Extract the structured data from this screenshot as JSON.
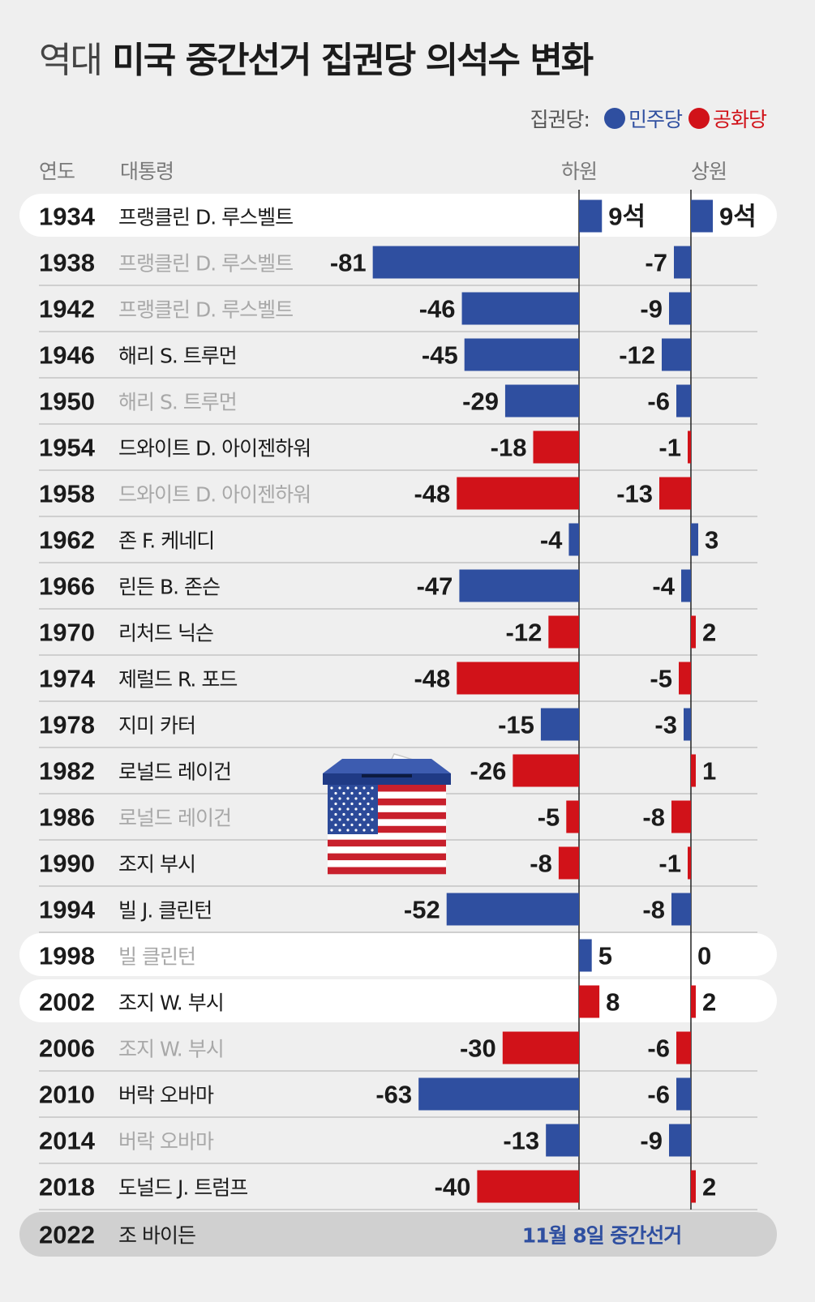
{
  "title": {
    "prefix": "역대",
    "main": "미국 중간선거 집권당 의석수 변화"
  },
  "legend": {
    "label": "집권당:",
    "items": [
      {
        "name": "민주당",
        "color": "#2f4fa0"
      },
      {
        "name": "공화당",
        "color": "#d11219"
      }
    ]
  },
  "headers": {
    "year": "연도",
    "president": "대통령",
    "house": "하원",
    "senate": "상원"
  },
  "chart_data": {
    "type": "bar",
    "series": [
      {
        "name": "하원",
        "values": [
          9,
          -81,
          -46,
          -45,
          -29,
          -18,
          -48,
          -4,
          -47,
          -12,
          -48,
          -15,
          -26,
          -5,
          -8,
          -52,
          5,
          8,
          -30,
          -63,
          -13,
          -40
        ]
      },
      {
        "name": "상원",
        "values": [
          9,
          -7,
          -9,
          -12,
          -6,
          -1,
          -13,
          3,
          -4,
          2,
          -5,
          -3,
          1,
          -8,
          -1,
          -8,
          0,
          2,
          -6,
          -6,
          -9,
          2
        ]
      }
    ],
    "rows": [
      {
        "year": "1934",
        "president": "프랭클린 D. 루스벨트",
        "party": "dem",
        "muted": false,
        "highlight": true,
        "house_label": "9석",
        "senate_label": "9석"
      },
      {
        "year": "1938",
        "president": "프랭클린 D. 루스벨트",
        "party": "dem",
        "muted": true,
        "highlight": false,
        "house_label": "-81",
        "senate_label": "-7"
      },
      {
        "year": "1942",
        "president": "프랭클린 D. 루스벨트",
        "party": "dem",
        "muted": true,
        "highlight": false,
        "house_label": "-46",
        "senate_label": "-9"
      },
      {
        "year": "1946",
        "president": "해리 S. 트루먼",
        "party": "dem",
        "muted": false,
        "highlight": false,
        "house_label": "-45",
        "senate_label": "-12"
      },
      {
        "year": "1950",
        "president": "해리 S. 트루먼",
        "party": "dem",
        "muted": true,
        "highlight": false,
        "house_label": "-29",
        "senate_label": "-6"
      },
      {
        "year": "1954",
        "president": "드와이트 D. 아이젠하워",
        "party": "rep",
        "muted": false,
        "highlight": false,
        "house_label": "-18",
        "senate_label": "-1"
      },
      {
        "year": "1958",
        "president": "드와이트 D. 아이젠하워",
        "party": "rep",
        "muted": true,
        "highlight": false,
        "house_label": "-48",
        "senate_label": "-13"
      },
      {
        "year": "1962",
        "president": "존 F. 케네디",
        "party": "dem",
        "muted": false,
        "highlight": false,
        "house_label": "-4",
        "senate_label": "3"
      },
      {
        "year": "1966",
        "president": "린든 B. 존슨",
        "party": "dem",
        "muted": false,
        "highlight": false,
        "house_label": "-47",
        "senate_label": "-4"
      },
      {
        "year": "1970",
        "president": "리처드 닉슨",
        "party": "rep",
        "muted": false,
        "highlight": false,
        "house_label": "-12",
        "senate_label": "2"
      },
      {
        "year": "1974",
        "president": "제럴드 R. 포드",
        "party": "rep",
        "muted": false,
        "highlight": false,
        "house_label": "-48",
        "senate_label": "-5"
      },
      {
        "year": "1978",
        "president": "지미 카터",
        "party": "dem",
        "muted": false,
        "highlight": false,
        "house_label": "-15",
        "senate_label": "-3"
      },
      {
        "year": "1982",
        "president": "로널드 레이건",
        "party": "rep",
        "muted": false,
        "highlight": false,
        "house_label": "-26",
        "senate_label": "1"
      },
      {
        "year": "1986",
        "president": "로널드 레이건",
        "party": "rep",
        "muted": true,
        "highlight": false,
        "house_label": "-5",
        "senate_label": "-8"
      },
      {
        "year": "1990",
        "president": "조지 부시",
        "party": "rep",
        "muted": false,
        "highlight": false,
        "house_label": "-8",
        "senate_label": "-1"
      },
      {
        "year": "1994",
        "president": "빌 J. 클린턴",
        "party": "dem",
        "muted": false,
        "highlight": false,
        "house_label": "-52",
        "senate_label": "-8"
      },
      {
        "year": "1998",
        "president": "빌 클린턴",
        "party": "dem",
        "muted": true,
        "highlight": true,
        "house_label": "5",
        "senate_label": "0"
      },
      {
        "year": "2002",
        "president": "조지 W. 부시",
        "party": "rep",
        "muted": false,
        "highlight": true,
        "house_label": "8",
        "senate_label": "2"
      },
      {
        "year": "2006",
        "president": "조지 W. 부시",
        "party": "rep",
        "muted": true,
        "highlight": false,
        "house_label": "-30",
        "senate_label": "-6"
      },
      {
        "year": "2010",
        "president": "버락 오바마",
        "party": "dem",
        "muted": false,
        "highlight": false,
        "house_label": "-63",
        "senate_label": "-6"
      },
      {
        "year": "2014",
        "president": "버락 오바마",
        "party": "dem",
        "muted": true,
        "highlight": false,
        "house_label": "-13",
        "senate_label": "-9"
      },
      {
        "year": "2018",
        "president": "도널드 J. 트럼프",
        "party": "rep",
        "muted": false,
        "highlight": false,
        "house_label": "-40",
        "senate_label": "2"
      }
    ],
    "final_row": {
      "year": "2022",
      "president": "조 바이든",
      "note": "11월 8일 중간선거"
    }
  }
}
